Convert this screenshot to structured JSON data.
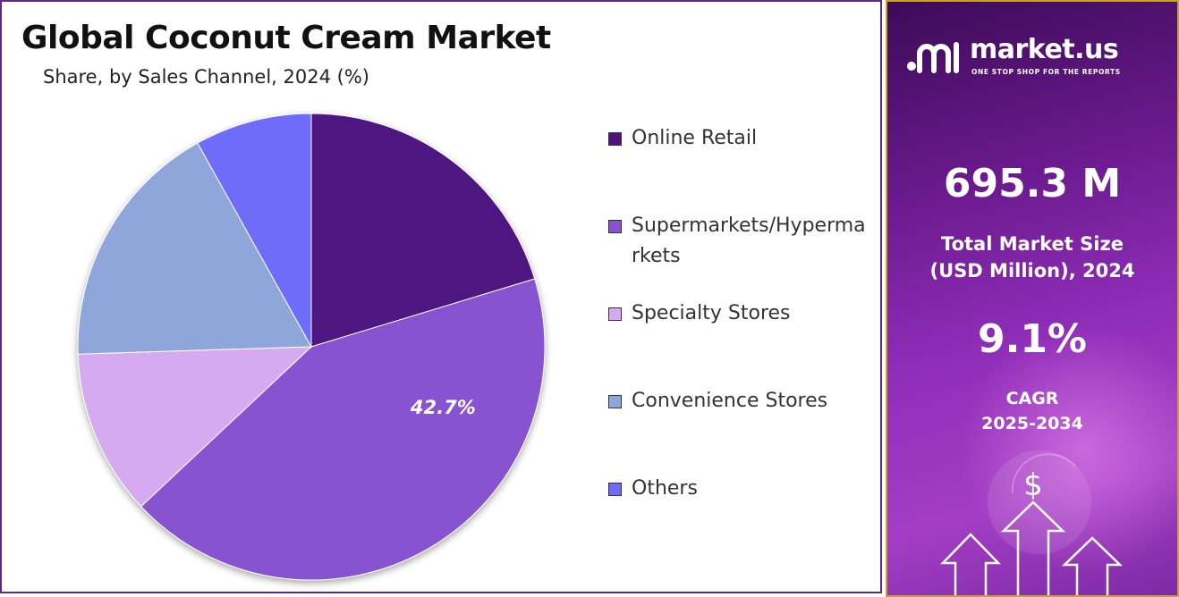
{
  "chart_data": {
    "type": "pie",
    "title": "Global Coconut Cream Market",
    "subtitle": "Share, by Sales Channel, 2024 (%)",
    "categories": [
      "Online Retail",
      "Supermarkets/Hypermarkets",
      "Specialty Stores",
      "Convenience Stores",
      "Others"
    ],
    "values": [
      20.3,
      42.7,
      11.5,
      17.4,
      8.1
    ],
    "data_labels": [
      "",
      "42.7%",
      "",
      "",
      ""
    ],
    "colors": [
      "#4e1580",
      "#8852d1",
      "#d5aaf0",
      "#8ea6da",
      "#6e6cf9"
    ],
    "start_angle_deg": 0,
    "legend_position": "right"
  },
  "sidebar": {
    "brand_name": "market.us",
    "brand_tagline": "ONE STOP SHOP FOR THE REPORTS",
    "brand_icon": "market-us-logo-icon",
    "market_size_value": "695.3 M",
    "market_size_label_line1": "Total Market Size",
    "market_size_label_line2": "(USD Million), 2024",
    "cagr_value": "9.1%",
    "cagr_label_line1": "CAGR",
    "cagr_label_line2": "2025-2034",
    "dollar_symbol": "$",
    "decoration_icon": "growth-arrows-icon"
  }
}
